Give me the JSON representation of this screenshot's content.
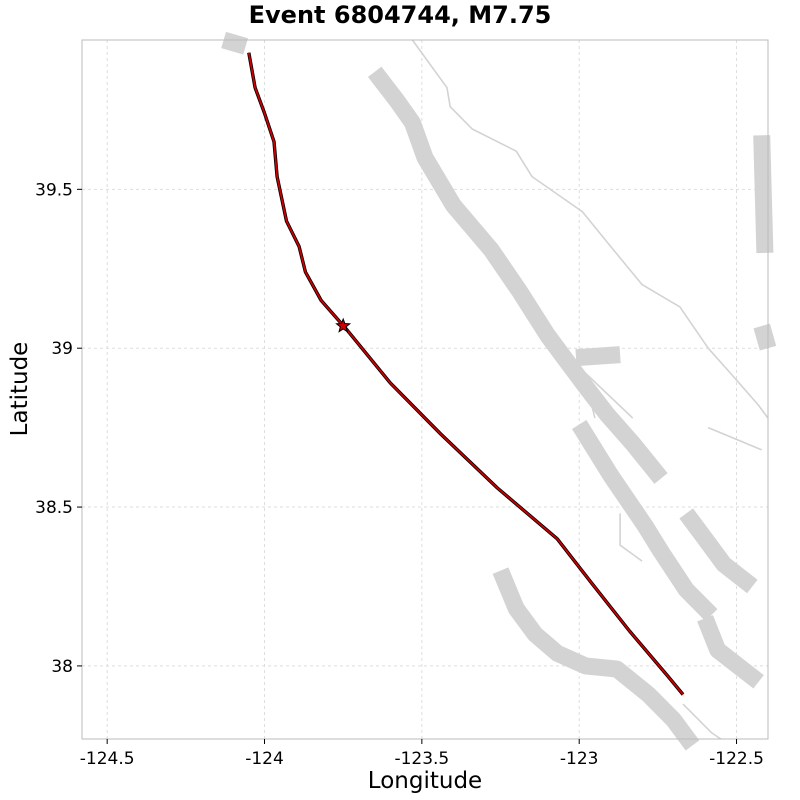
{
  "chart_data": {
    "type": "scatter",
    "title": "Event 6804744, M7.75",
    "xlabel": "Longitude",
    "ylabel": "Latitude",
    "xlim": [
      -124.58,
      -122.4
    ],
    "ylim": [
      37.77,
      39.97
    ],
    "x_ticks": [
      -124.5,
      -124,
      -123.5,
      -123,
      -122.5
    ],
    "x_tick_labels": [
      "-124.5",
      "-124",
      "-123.5",
      "-123",
      "-122.5"
    ],
    "y_ticks": [
      38,
      38.5,
      39,
      39.5
    ],
    "y_tick_labels": [
      "38",
      "38.5",
      "39",
      "39.5"
    ],
    "grid": true,
    "colors": {
      "rupture": "#cc0000",
      "rupture_edge": "#000000",
      "faults": "#d3d3d3",
      "grid": "#dddddd"
    },
    "series": [
      {
        "kind": "rupture-trace",
        "points": [
          [
            -124.05,
            39.93
          ],
          [
            -124.03,
            39.82
          ],
          [
            -124.0,
            39.74
          ],
          [
            -123.97,
            39.65
          ],
          [
            -123.96,
            39.54
          ],
          [
            -123.93,
            39.4
          ],
          [
            -123.89,
            39.32
          ],
          [
            -123.87,
            39.24
          ],
          [
            -123.82,
            39.15
          ],
          [
            -123.74,
            39.06
          ],
          [
            -123.6,
            38.89
          ],
          [
            -123.44,
            38.73
          ],
          [
            -123.26,
            38.56
          ],
          [
            -123.07,
            38.4
          ],
          [
            -122.96,
            38.26
          ],
          [
            -122.84,
            38.11
          ],
          [
            -122.72,
            37.97
          ],
          [
            -122.67,
            37.91
          ]
        ]
      },
      {
        "kind": "hypocenter",
        "points": [
          [
            -123.75,
            39.07
          ]
        ]
      },
      {
        "kind": "fault-surface",
        "points": [
          [
            -123.65,
            39.87
          ],
          [
            -123.58,
            39.78
          ],
          [
            -123.53,
            39.71
          ],
          [
            -123.49,
            39.6
          ],
          [
            -123.4,
            39.45
          ],
          [
            -123.28,
            39.31
          ],
          [
            -123.19,
            39.18
          ],
          [
            -123.1,
            39.04
          ],
          [
            -122.98,
            38.88
          ],
          [
            -122.91,
            38.79
          ],
          [
            -122.83,
            38.7
          ],
          [
            -122.74,
            38.59
          ]
        ]
      },
      {
        "kind": "fault-surface",
        "points": [
          [
            -123.01,
            38.97
          ],
          [
            -122.87,
            38.98
          ]
        ]
      },
      {
        "kind": "fault-surface",
        "points": [
          [
            -123.0,
            38.76
          ],
          [
            -122.9,
            38.6
          ],
          [
            -122.79,
            38.44
          ],
          [
            -122.74,
            38.36
          ],
          [
            -122.66,
            38.24
          ],
          [
            -122.58,
            38.16
          ]
        ]
      },
      {
        "kind": "fault-surface",
        "points": [
          [
            -122.66,
            38.48
          ],
          [
            -122.6,
            38.4
          ],
          [
            -122.54,
            38.32
          ],
          [
            -122.45,
            38.25
          ]
        ]
      },
      {
        "kind": "fault-surface",
        "points": [
          [
            -122.6,
            38.15
          ],
          [
            -122.56,
            38.05
          ],
          [
            -122.43,
            37.95
          ]
        ]
      },
      {
        "kind": "fault-surface",
        "points": [
          [
            -123.25,
            38.3
          ],
          [
            -123.2,
            38.18
          ],
          [
            -123.14,
            38.1
          ],
          [
            -123.07,
            38.04
          ],
          [
            -122.98,
            38.0
          ],
          [
            -122.88,
            37.99
          ],
          [
            -122.78,
            37.91
          ],
          [
            -122.7,
            37.83
          ],
          [
            -122.64,
            37.75
          ]
        ]
      },
      {
        "kind": "fault-surface",
        "points": [
          [
            -124.13,
            39.97
          ],
          [
            -124.06,
            39.95
          ]
        ]
      },
      {
        "kind": "fault-surface",
        "points": [
          [
            -122.42,
            39.67
          ],
          [
            -122.41,
            39.3
          ]
        ]
      },
      {
        "kind": "fault-surface",
        "points": [
          [
            -122.42,
            39.07
          ],
          [
            -122.4,
            39.0
          ]
        ]
      },
      {
        "kind": "fault-trace",
        "points": [
          [
            -123.53,
            39.97
          ],
          [
            -123.42,
            39.82
          ],
          [
            -123.41,
            39.76
          ],
          [
            -123.34,
            39.69
          ],
          [
            -123.2,
            39.62
          ],
          [
            -123.15,
            39.54
          ],
          [
            -122.99,
            39.43
          ],
          [
            -122.9,
            39.32
          ],
          [
            -122.8,
            39.2
          ],
          [
            -122.68,
            39.13
          ],
          [
            -122.59,
            39.0
          ],
          [
            -122.5,
            38.9
          ],
          [
            -122.43,
            38.82
          ],
          [
            -122.4,
            38.78
          ]
        ]
      },
      {
        "kind": "fault-trace",
        "points": [
          [
            -123.01,
            38.95
          ],
          [
            -122.83,
            38.78
          ]
        ]
      },
      {
        "kind": "fault-trace",
        "points": [
          [
            -122.96,
            38.82
          ],
          [
            -122.95,
            38.78
          ]
        ]
      },
      {
        "kind": "fault-trace",
        "points": [
          [
            -122.59,
            38.75
          ],
          [
            -122.42,
            38.68
          ]
        ]
      },
      {
        "kind": "fault-trace",
        "points": [
          [
            -122.87,
            38.48
          ],
          [
            -122.87,
            38.38
          ],
          [
            -122.8,
            38.33
          ]
        ]
      },
      {
        "kind": "fault-trace",
        "points": [
          [
            -122.67,
            37.88
          ],
          [
            -122.58,
            37.79
          ],
          [
            -122.55,
            37.77
          ]
        ]
      }
    ]
  }
}
